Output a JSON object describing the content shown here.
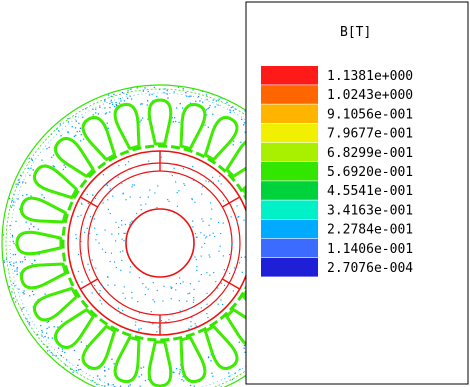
{
  "legend": {
    "title": "B[T]",
    "entries": [
      {
        "label": "1.1381e+000",
        "color": "#ff1a1a"
      },
      {
        "label": "1.0243e+000",
        "color": "#ff6600"
      },
      {
        "label": "9.1056e-001",
        "color": "#ffb400"
      },
      {
        "label": "7.9677e-001",
        "color": "#f0f000"
      },
      {
        "label": "6.8299e-001",
        "color": "#a8f000"
      },
      {
        "label": "5.6920e-001",
        "color": "#33e600"
      },
      {
        "label": "4.5541e-001",
        "color": "#00d23c"
      },
      {
        "label": "3.4163e-001",
        "color": "#00f0c8"
      },
      {
        "label": "2.2784e-001",
        "color": "#00aaff"
      },
      {
        "label": "1.1406e-001",
        "color": "#3c6cff"
      },
      {
        "label": "2.7076e-004",
        "color": "#1f1fd8"
      }
    ]
  },
  "figure": {
    "stator_teeth_count": 24,
    "rotor_poles_count": 6,
    "colors": {
      "stator": "#33e600",
      "stator_teeth": "#44ee00",
      "rotor": "#ee1111",
      "low_field_dots": "#00aaff",
      "very_low_field_dots": "#3c6cff"
    }
  }
}
